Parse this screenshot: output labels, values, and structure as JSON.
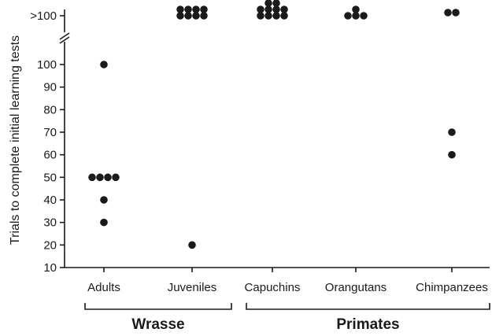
{
  "chart_data": {
    "type": "scatter",
    "title": "",
    "ylabel": "Trials to complete initial learning tests",
    "xlabel": "",
    "ylim": [
      10,
      100
    ],
    "yticks": [
      10,
      20,
      30,
      40,
      50,
      60,
      70,
      80,
      90,
      100
    ],
    "ybreak_label": ">100",
    "categories": [
      "Adults",
      "Juveniles",
      "Capuchins",
      "Orangutans",
      "Chimpanzees"
    ],
    "groups": [
      {
        "label": "Wrasse",
        "categories": [
          "Adults",
          "Juveniles"
        ]
      },
      {
        "label": "Primates",
        "categories": [
          "Capuchins",
          "Orangutans",
          "Chimpanzees"
        ]
      }
    ],
    "points": [
      {
        "category": "Adults",
        "y": 100
      },
      {
        "category": "Adults",
        "y": 50,
        "offset": -1.5
      },
      {
        "category": "Adults",
        "y": 50,
        "offset": -0.5
      },
      {
        "category": "Adults",
        "y": 50,
        "offset": 0.5
      },
      {
        "category": "Adults",
        "y": 50,
        "offset": 1.5
      },
      {
        "category": "Adults",
        "y": 40
      },
      {
        "category": "Adults",
        "y": 30
      },
      {
        "category": "Juveniles",
        "y": ">100",
        "offset": -1.5,
        "row": 0
      },
      {
        "category": "Juveniles",
        "y": ">100",
        "offset": -0.5,
        "row": 0
      },
      {
        "category": "Juveniles",
        "y": ">100",
        "offset": 0.5,
        "row": 0
      },
      {
        "category": "Juveniles",
        "y": ">100",
        "offset": 1.5,
        "row": 0
      },
      {
        "category": "Juveniles",
        "y": ">100",
        "offset": -1.5,
        "row": 1
      },
      {
        "category": "Juveniles",
        "y": ">100",
        "offset": -0.5,
        "row": 1
      },
      {
        "category": "Juveniles",
        "y": ">100",
        "offset": 0.5,
        "row": 1
      },
      {
        "category": "Juveniles",
        "y": ">100",
        "offset": 1.5,
        "row": 1
      },
      {
        "category": "Juveniles",
        "y": 20
      },
      {
        "category": "Capuchins",
        "y": ">100",
        "offset": -0.5,
        "row": -1
      },
      {
        "category": "Capuchins",
        "y": ">100",
        "offset": 0.5,
        "row": -1
      },
      {
        "category": "Capuchins",
        "y": ">100",
        "offset": -1.5,
        "row": 0
      },
      {
        "category": "Capuchins",
        "y": ">100",
        "offset": -0.5,
        "row": 0
      },
      {
        "category": "Capuchins",
        "y": ">100",
        "offset": 0.5,
        "row": 0
      },
      {
        "category": "Capuchins",
        "y": ">100",
        "offset": 1.5,
        "row": 0
      },
      {
        "category": "Capuchins",
        "y": ">100",
        "offset": -1.5,
        "row": 1
      },
      {
        "category": "Capuchins",
        "y": ">100",
        "offset": -0.5,
        "row": 1
      },
      {
        "category": "Capuchins",
        "y": ">100",
        "offset": 0.5,
        "row": 1
      },
      {
        "category": "Capuchins",
        "y": ">100",
        "offset": 1.5,
        "row": 1
      },
      {
        "category": "Orangutans",
        "y": ">100",
        "offset": 0,
        "row": 0
      },
      {
        "category": "Orangutans",
        "y": ">100",
        "offset": -1,
        "row": 1
      },
      {
        "category": "Orangutans",
        "y": ">100",
        "offset": 0,
        "row": 1
      },
      {
        "category": "Orangutans",
        "y": ">100",
        "offset": 1,
        "row": 1
      },
      {
        "category": "Chimpanzees",
        "y": ">100",
        "offset": -0.5,
        "row": 0.5
      },
      {
        "category": "Chimpanzees",
        "y": ">100",
        "offset": 0.5,
        "row": 0.5
      },
      {
        "category": "Chimpanzees",
        "y": 70
      },
      {
        "category": "Chimpanzees",
        "y": 60
      }
    ],
    "grid": false,
    "legend": "none",
    "marker_color": "#1a1a1a"
  }
}
